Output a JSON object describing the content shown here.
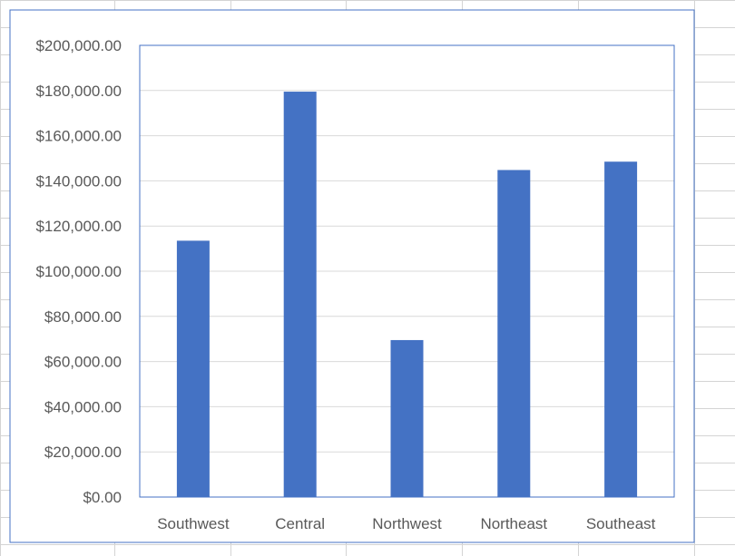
{
  "colors": {
    "bar": "#4472C4",
    "gridline": "#D9D9D9",
    "plot_border": "#4472C4",
    "chart_border": "#4472C4",
    "sheet_grid": "#D4D4D4",
    "text": "#595959"
  },
  "chart_data": {
    "type": "bar",
    "title": "",
    "xlabel": "",
    "ylabel": "",
    "categories": [
      "Southwest",
      "Central",
      "Northwest",
      "Northeast",
      "Southeast"
    ],
    "values": [
      113500,
      179500,
      69500,
      144800,
      148500
    ],
    "ylim": [
      0,
      200000
    ],
    "y_ticks": [
      0,
      20000,
      40000,
      60000,
      80000,
      100000,
      120000,
      140000,
      160000,
      180000,
      200000
    ],
    "y_tick_labels": [
      "$0.00",
      "$20,000.00",
      "$40,000.00",
      "$60,000.00",
      "$80,000.00",
      "$100,000.00",
      "$120,000.00",
      "$140,000.00",
      "$160,000.00",
      "$180,000.00",
      "$200,000.00"
    ],
    "grid": true,
    "legend": "none"
  }
}
